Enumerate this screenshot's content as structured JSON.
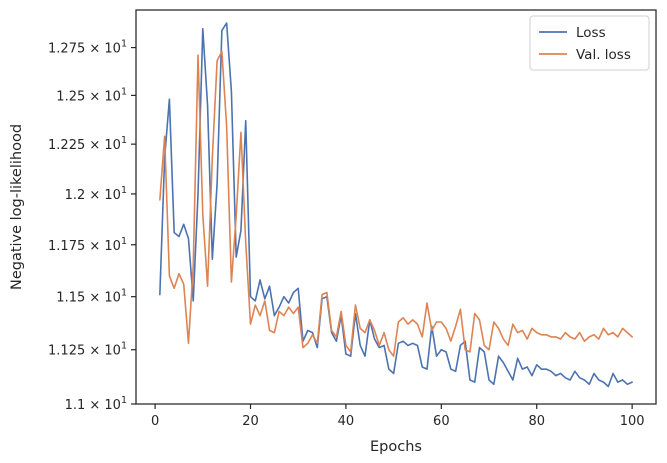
{
  "chart_data": {
    "type": "line",
    "title": "",
    "xlabel": "Epochs",
    "ylabel": "Negative log-likelihood",
    "xlim": [
      -4,
      105
    ],
    "ylim": [
      11.0,
      12.95
    ],
    "yscale": "log",
    "xticks": [
      0,
      20,
      40,
      60,
      80,
      100
    ],
    "yticks": [
      11.0,
      11.25,
      11.5,
      11.75,
      12.0,
      12.25,
      12.5,
      12.75
    ],
    "ytick_labels": [
      {
        "mant": "1.1",
        "exp": "1"
      },
      {
        "mant": "1.125",
        "exp": "1"
      },
      {
        "mant": "1.15",
        "exp": "1"
      },
      {
        "mant": "1.175",
        "exp": "1"
      },
      {
        "mant": "1.2",
        "exp": "1"
      },
      {
        "mant": "1.225",
        "exp": "1"
      },
      {
        "mant": "1.25",
        "exp": "1"
      },
      {
        "mant": "1.275",
        "exp": "1"
      }
    ],
    "grid": false,
    "legend_position": "top-right",
    "x": [
      1,
      2,
      3,
      4,
      5,
      6,
      7,
      8,
      9,
      10,
      11,
      12,
      13,
      14,
      15,
      16,
      17,
      18,
      19,
      20,
      21,
      22,
      23,
      24,
      25,
      26,
      27,
      28,
      29,
      30,
      31,
      32,
      33,
      34,
      35,
      36,
      37,
      38,
      39,
      40,
      41,
      42,
      43,
      44,
      45,
      46,
      47,
      48,
      49,
      50,
      51,
      52,
      53,
      54,
      55,
      56,
      57,
      58,
      59,
      60,
      61,
      62,
      63,
      64,
      65,
      66,
      67,
      68,
      69,
      70,
      71,
      72,
      73,
      74,
      75,
      76,
      77,
      78,
      79,
      80,
      81,
      82,
      83,
      84,
      85,
      86,
      87,
      88,
      89,
      90,
      91,
      92,
      93,
      94,
      95,
      96,
      97,
      98,
      99,
      100
    ],
    "series": [
      {
        "name": "Loss",
        "color": "#4c72b0",
        "values": [
          11.51,
          12.18,
          12.48,
          11.81,
          11.79,
          11.85,
          11.78,
          11.48,
          12.0,
          12.85,
          12.45,
          11.68,
          12.05,
          12.84,
          12.88,
          12.52,
          11.69,
          11.82,
          12.37,
          11.5,
          11.48,
          11.58,
          11.49,
          11.55,
          11.41,
          11.45,
          11.5,
          11.47,
          11.52,
          11.54,
          11.29,
          11.34,
          11.33,
          11.26,
          11.49,
          11.5,
          11.33,
          11.29,
          11.41,
          11.23,
          11.22,
          11.42,
          11.27,
          11.22,
          11.39,
          11.3,
          11.26,
          11.27,
          11.16,
          11.14,
          11.28,
          11.29,
          11.27,
          11.28,
          11.27,
          11.17,
          11.16,
          11.36,
          11.22,
          11.25,
          11.24,
          11.16,
          11.15,
          11.27,
          11.29,
          11.11,
          11.1,
          11.26,
          11.24,
          11.11,
          11.09,
          11.22,
          11.19,
          11.15,
          11.11,
          11.21,
          11.16,
          11.17,
          11.13,
          11.18,
          11.16,
          11.16,
          11.15,
          11.13,
          11.14,
          11.12,
          11.11,
          11.15,
          11.12,
          11.11,
          11.09,
          11.14,
          11.11,
          11.1,
          11.08,
          11.14,
          11.1,
          11.11,
          11.09,
          11.1
        ]
      },
      {
        "name": "Val. loss",
        "color": "#dd8452",
        "values": [
          11.97,
          12.29,
          11.6,
          11.54,
          11.61,
          11.56,
          11.28,
          11.65,
          12.71,
          11.9,
          11.55,
          12.18,
          12.68,
          12.73,
          12.34,
          11.57,
          11.89,
          12.31,
          11.76,
          11.37,
          11.46,
          11.41,
          11.48,
          11.34,
          11.33,
          11.43,
          11.41,
          11.45,
          11.42,
          11.45,
          11.26,
          11.28,
          11.32,
          11.28,
          11.51,
          11.52,
          11.34,
          11.31,
          11.43,
          11.27,
          11.24,
          11.46,
          11.35,
          11.33,
          11.39,
          11.34,
          11.27,
          11.33,
          11.25,
          11.22,
          11.38,
          11.4,
          11.37,
          11.39,
          11.37,
          11.31,
          11.47,
          11.34,
          11.38,
          11.38,
          11.35,
          11.29,
          11.36,
          11.44,
          11.25,
          11.24,
          11.42,
          11.39,
          11.27,
          11.25,
          11.38,
          11.35,
          11.3,
          11.27,
          11.37,
          11.33,
          11.34,
          11.3,
          11.35,
          11.33,
          11.32,
          11.32,
          11.31,
          11.31,
          11.3,
          11.33,
          11.31,
          11.3,
          11.33,
          11.29,
          11.31,
          11.32,
          11.3,
          11.35,
          11.32,
          11.33,
          11.31,
          11.35,
          11.33,
          11.31
        ]
      }
    ]
  }
}
